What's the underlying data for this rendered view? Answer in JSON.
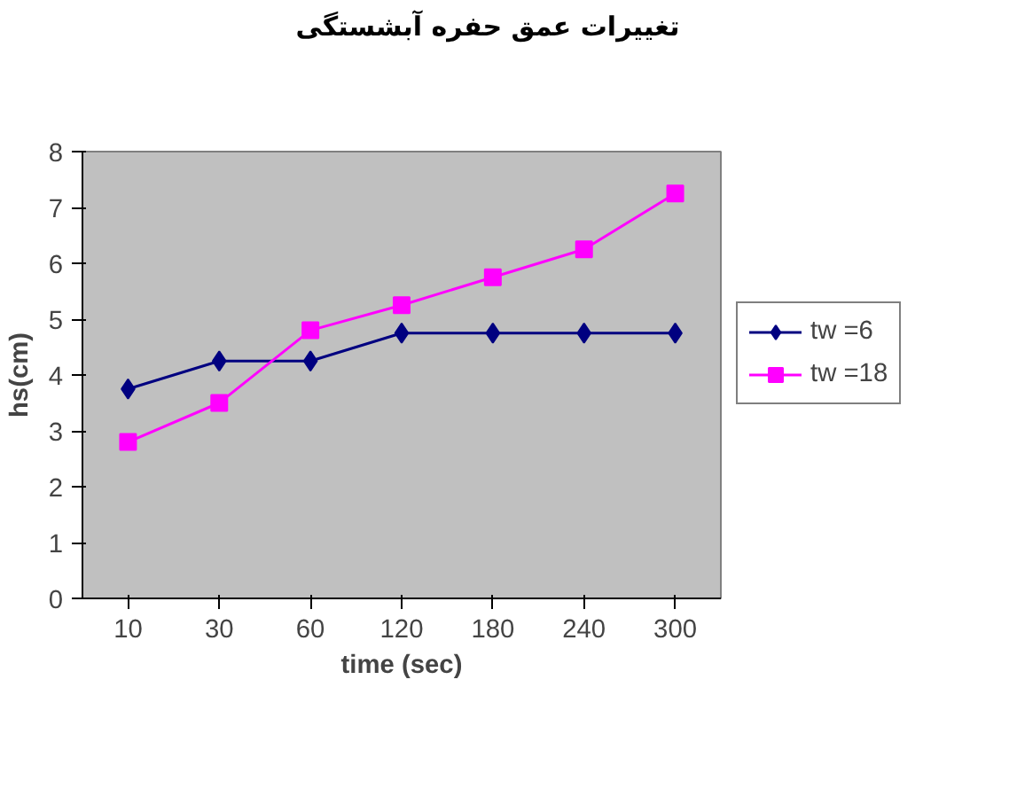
{
  "chart_data": {
    "type": "line",
    "title": "تغییرات عمق حفره آبشستگی",
    "xlabel": "time (sec)",
    "ylabel": "hs(cm)",
    "categories": [
      "10",
      "30",
      "60",
      "120",
      "180",
      "240",
      "300"
    ],
    "ylim": [
      0,
      8
    ],
    "yticks": [
      0,
      1,
      2,
      3,
      4,
      5,
      6,
      7,
      8
    ],
    "grid": false,
    "legend": "right",
    "line_style": "solid",
    "series": [
      {
        "name": "tw =6",
        "color": "#000080",
        "marker": "diamond",
        "values": [
          3.75,
          4.25,
          4.25,
          4.75,
          4.75,
          4.75,
          4.75
        ]
      },
      {
        "name": "tw =18",
        "color": "#ff00ff",
        "marker": "square",
        "values": [
          2.8,
          3.5,
          4.8,
          5.25,
          5.75,
          6.25,
          7.25
        ]
      }
    ]
  }
}
